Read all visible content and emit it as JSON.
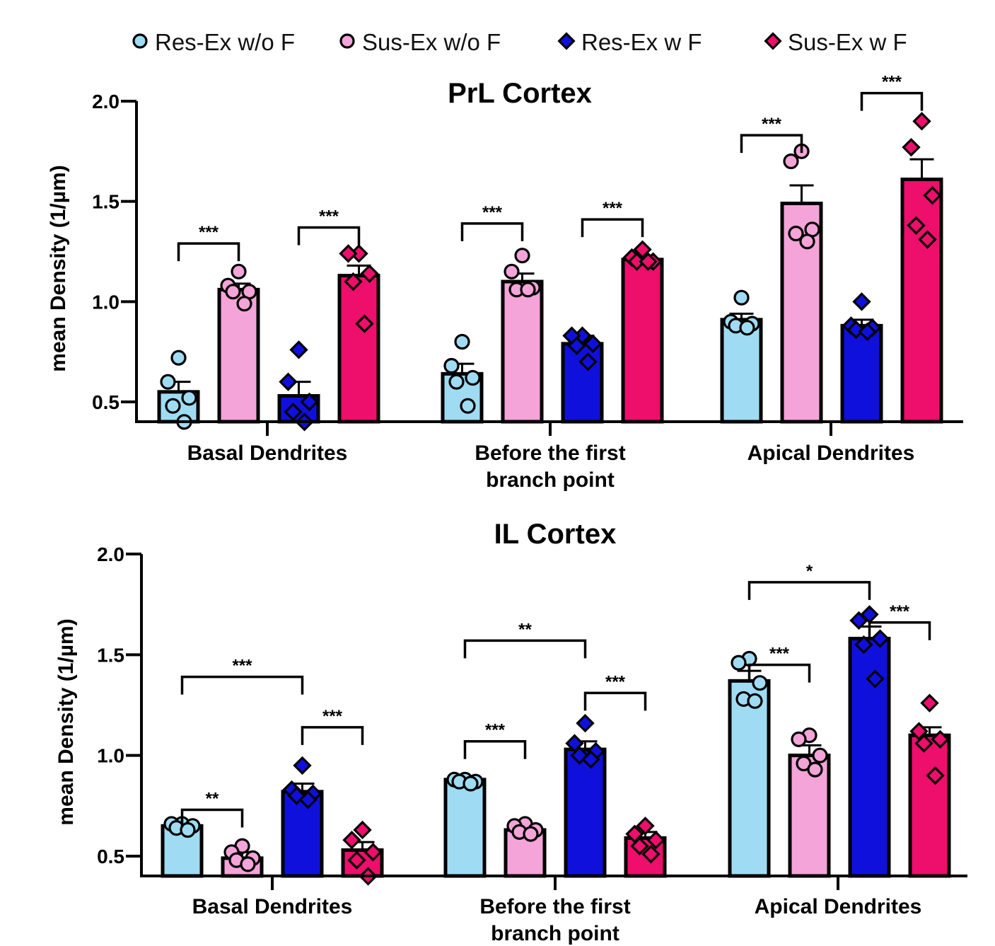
{
  "chart_data": {
    "type": "bar",
    "legend": [
      {
        "name": "Res-Ex w/o F",
        "color": "#9fdcf3",
        "marker": "circle"
      },
      {
        "name": "Sus-Ex w/o F",
        "color": "#f4a4d8",
        "marker": "circle"
      },
      {
        "name": "Res-Ex w F",
        "color": "#1010dd",
        "marker": "diamond"
      },
      {
        "name": "Sus-Ex w F",
        "color": "#ee0e6c",
        "marker": "diamond"
      }
    ],
    "panels": [
      {
        "title": "PrL Cortex",
        "ylabel": "mean Density  (1/µm)",
        "ylim": [
          0.4,
          2.0
        ],
        "yticks": [
          "0.5",
          "1.0",
          "1.5",
          "2.0"
        ],
        "ytick_values": [
          0.5,
          1.0,
          1.5,
          2.0
        ],
        "categories": [
          [
            "Basal Dendrites"
          ],
          [
            "Before the first",
            "branch point"
          ],
          [
            "Apical Dendrites"
          ]
        ],
        "series": [
          {
            "name": "Res-Ex w/o F",
            "values": [
              0.55,
              0.64,
              0.91
            ],
            "sem": [
              0.05,
              0.05,
              0.03
            ],
            "points": [
              [
                0.72,
                0.6,
                0.52,
                0.48,
                0.4
              ],
              [
                0.8,
                0.68,
                0.62,
                0.6,
                0.48
              ],
              [
                1.02,
                0.9,
                0.89,
                0.88,
                0.87
              ]
            ]
          },
          {
            "name": "Sus-Ex w/o F",
            "values": [
              1.06,
              1.1,
              1.49
            ],
            "sem": [
              0.03,
              0.04,
              0.09
            ],
            "points": [
              [
                1.15,
                1.08,
                1.05,
                1.05,
                0.99
              ],
              [
                1.23,
                1.15,
                1.07,
                1.06,
                1.06
              ],
              [
                1.75,
                1.7,
                1.36,
                1.34,
                1.3
              ]
            ]
          },
          {
            "name": "Res-Ex w F",
            "values": [
              0.53,
              0.79,
              0.88
            ],
            "sem": [
              0.07,
              0.04,
              0.03
            ],
            "points": [
              [
                0.76,
                0.6,
                0.5,
                0.45,
                0.4
              ],
              [
                0.83,
                0.83,
                0.79,
                0.78,
                0.7
              ],
              [
                1.0,
                0.88,
                0.87,
                0.86,
                0.85
              ]
            ]
          },
          {
            "name": "Sus-Ex w F",
            "values": [
              1.13,
              1.21,
              1.61
            ],
            "sem": [
              0.05,
              0.01,
              0.1
            ],
            "points": [
              [
                1.24,
                1.24,
                1.14,
                1.1,
                0.89
              ],
              [
                1.26,
                1.22,
                1.2,
                1.2,
                1.2
              ],
              [
                1.9,
                1.77,
                1.53,
                1.38,
                1.31
              ]
            ]
          }
        ],
        "comparisons": [
          {
            "group": 0,
            "from": 0,
            "to": 1,
            "y": 1.29,
            "label": "***"
          },
          {
            "group": 0,
            "from": 2,
            "to": 3,
            "y": 1.37,
            "label": "***"
          },
          {
            "group": 1,
            "from": 0,
            "to": 1,
            "y": 1.39,
            "label": "***"
          },
          {
            "group": 1,
            "from": 2,
            "to": 3,
            "y": 1.41,
            "label": "***"
          },
          {
            "group": 2,
            "from": 0,
            "to": 1,
            "y": 1.83,
            "label": "***"
          },
          {
            "group": 2,
            "from": 2,
            "to": 3,
            "y": 2.04,
            "label": "***"
          }
        ]
      },
      {
        "title": "IL Cortex",
        "ylabel": "mean Density (1/µm)",
        "ylim": [
          0.4,
          2.0
        ],
        "yticks": [
          "0.5",
          "1.0",
          "1.5",
          "2.0"
        ],
        "ytick_values": [
          0.5,
          1.0,
          1.5,
          2.0
        ],
        "categories": [
          [
            "Basal Dendrites"
          ],
          [
            "Before the first",
            "branch point"
          ],
          [
            "Apical Dendrites"
          ]
        ],
        "series": [
          {
            "name": "Res-Ex w/o F",
            "values": [
              0.65,
              0.88,
              1.37
            ],
            "sem": [
              0.01,
              0.01,
              0.05
            ],
            "points": [
              [
                0.66,
                0.66,
                0.65,
                0.64,
                0.63
              ],
              [
                0.88,
                0.88,
                0.87,
                0.87,
                0.86
              ],
              [
                1.48,
                1.46,
                1.36,
                1.28,
                1.27
              ]
            ]
          },
          {
            "name": "Sus-Ex w/o F",
            "values": [
              0.49,
              0.63,
              1.0
            ],
            "sem": [
              0.03,
              0.02,
              0.05
            ],
            "points": [
              [
                0.55,
                0.52,
                0.49,
                0.48,
                0.46
              ],
              [
                0.66,
                0.65,
                0.63,
                0.62,
                0.61
              ],
              [
                1.1,
                1.08,
                1.0,
                0.96,
                0.93
              ]
            ]
          },
          {
            "name": "Res-Ex w F",
            "values": [
              0.82,
              1.03,
              1.58
            ],
            "sem": [
              0.04,
              0.04,
              0.06
            ],
            "points": [
              [
                0.95,
                0.83,
                0.81,
                0.8,
                0.78
              ],
              [
                1.16,
                1.06,
                1.02,
                1.0,
                0.98
              ],
              [
                1.7,
                1.67,
                1.58,
                1.55,
                1.38
              ]
            ]
          },
          {
            "name": "Sus-Ex w F",
            "values": [
              0.53,
              0.59,
              1.1
            ],
            "sem": [
              0.04,
              0.03,
              0.04
            ],
            "points": [
              [
                0.63,
                0.58,
                0.52,
                0.48,
                0.4
              ],
              [
                0.65,
                0.61,
                0.58,
                0.55,
                0.51
              ],
              [
                1.26,
                1.12,
                1.08,
                1.06,
                0.9
              ]
            ]
          }
        ],
        "comparisons": [
          {
            "group": 0,
            "from": 0,
            "to": 2,
            "y": 1.39,
            "label": "***"
          },
          {
            "group": 0,
            "from": 2,
            "to": 3,
            "y": 1.14,
            "label": "***"
          },
          {
            "group": 0,
            "from": 0,
            "to": 1,
            "y": 0.73,
            "label": "**"
          },
          {
            "group": 1,
            "from": 0,
            "to": 2,
            "y": 1.57,
            "label": "**"
          },
          {
            "group": 1,
            "from": 2,
            "to": 3,
            "y": 1.31,
            "label": "***"
          },
          {
            "group": 1,
            "from": 0,
            "to": 1,
            "y": 1.07,
            "label": "***"
          },
          {
            "group": 2,
            "from": 0,
            "to": 2,
            "y": 1.86,
            "label": "*"
          },
          {
            "group": 2,
            "from": 2,
            "to": 3,
            "y": 1.66,
            "label": "***"
          },
          {
            "group": 2,
            "from": 0,
            "to": 1,
            "y": 1.45,
            "label": "***"
          }
        ]
      }
    ]
  }
}
